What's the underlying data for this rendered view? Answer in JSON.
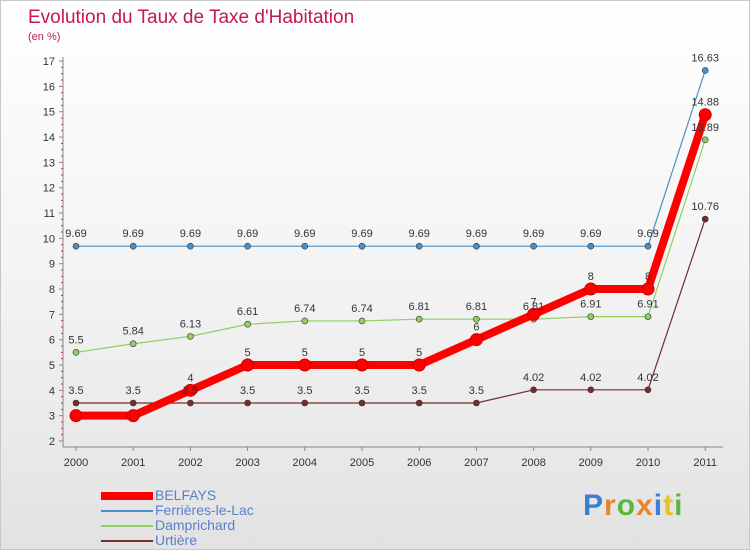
{
  "title": "Evolution du Taux de Taxe d'Habitation",
  "subtitle": "(en %)",
  "logo": "Proxiti",
  "chart_data": {
    "type": "line",
    "title": "Evolution du Taux de Taxe d'Habitation",
    "ylabel": "(en %)",
    "xlabel": "",
    "categories": [
      "2000",
      "2001",
      "2002",
      "2003",
      "2004",
      "2005",
      "2006",
      "2007",
      "2008",
      "2009",
      "2010",
      "2011"
    ],
    "ylim": [
      2,
      17
    ],
    "yticks": [
      "2",
      "3",
      "4",
      "5",
      "6",
      "7",
      "8",
      "9",
      "10",
      "11",
      "12",
      "13",
      "14",
      "15",
      "16",
      "17"
    ],
    "grid": false,
    "legend_position": "bottom-left",
    "series": [
      {
        "name": "BELFAYS",
        "color": "#ff0000",
        "values": [
          3,
          3,
          4,
          5,
          5,
          5,
          5,
          6,
          7,
          8,
          8,
          14.88
        ],
        "labels": [
          "",
          "",
          "4",
          "5",
          "5",
          "5",
          "5",
          "6",
          "7",
          "8",
          "8",
          "14.88"
        ]
      },
      {
        "name": "Ferrières-le-Lac",
        "color": "#4a90c8",
        "values": [
          9.69,
          9.69,
          9.69,
          9.69,
          9.69,
          9.69,
          9.69,
          9.69,
          9.69,
          9.69,
          9.69,
          16.63
        ],
        "labels": [
          "9.69",
          "9.69",
          "9.69",
          "9.69",
          "9.69",
          "9.69",
          "9.69",
          "9.69",
          "9.69",
          "9.69",
          "9.69",
          "16.63"
        ]
      },
      {
        "name": "Damprichard",
        "color": "#90d060",
        "values": [
          5.5,
          5.84,
          6.13,
          6.61,
          6.74,
          6.74,
          6.81,
          6.81,
          6.81,
          6.91,
          6.91,
          13.89
        ],
        "labels": [
          "5.5",
          "5.84",
          "6.13",
          "6.61",
          "6.74",
          "6.74",
          "6.81",
          "6.81",
          "6.81",
          "6.91",
          "6.91",
          "13.89"
        ]
      },
      {
        "name": "Urtière",
        "color": "#7a2a2a",
        "values": [
          3.5,
          3.5,
          3.5,
          3.5,
          3.5,
          3.5,
          3.5,
          3.5,
          4.02,
          4.02,
          4.02,
          10.76
        ],
        "labels": [
          "3.5",
          "3.5",
          "3.5",
          "3.5",
          "3.5",
          "3.5",
          "3.5",
          "3.5",
          "4.02",
          "4.02",
          "4.02",
          "10.76"
        ]
      }
    ]
  }
}
